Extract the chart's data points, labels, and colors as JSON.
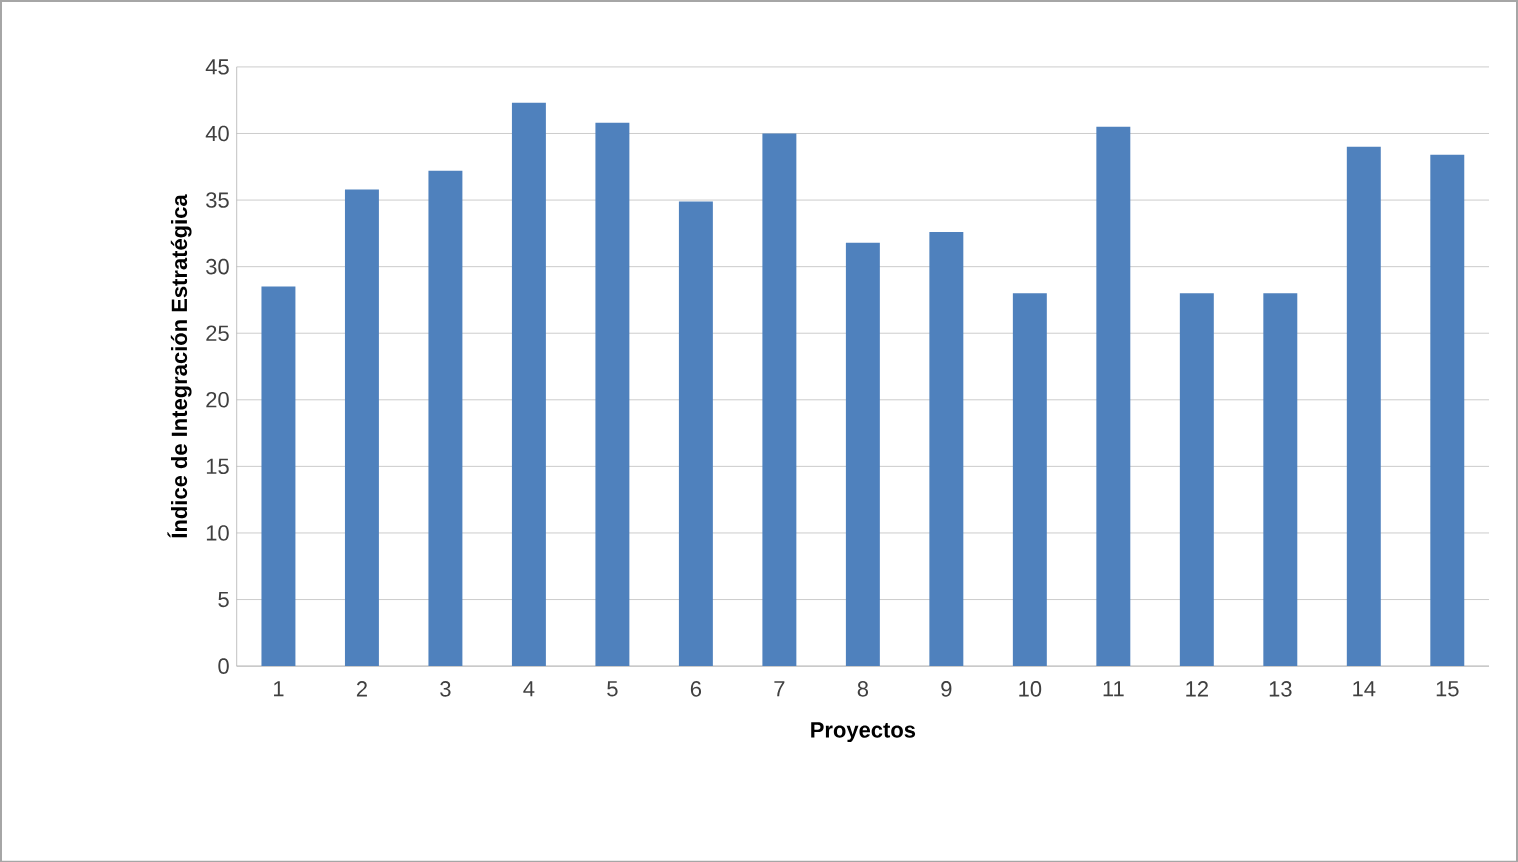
{
  "chart_data": {
    "type": "bar",
    "xlabel": "Proyectos",
    "ylabel": "Índice de Integración Estratégica",
    "categories": [
      "1",
      "2",
      "3",
      "4",
      "5",
      "6",
      "7",
      "8",
      "9",
      "10",
      "11",
      "12",
      "13",
      "14",
      "15"
    ],
    "values": [
      28.5,
      35.8,
      37.2,
      42.3,
      40.8,
      34.9,
      40.0,
      31.8,
      32.6,
      28.0,
      40.5,
      28.0,
      28.0,
      39.0,
      38.4
    ],
    "color": "#4f81bd",
    "ylim": [
      0,
      45
    ],
    "yticks": [
      0,
      5,
      10,
      15,
      20,
      25,
      30,
      35,
      40,
      45
    ],
    "grid": "y"
  }
}
